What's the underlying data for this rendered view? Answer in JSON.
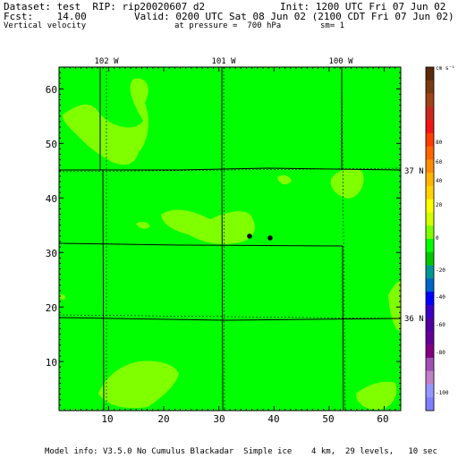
{
  "header": {
    "dataset_label": "Dataset: test  RIP: rip20020607 d2",
    "init_label": "Init: 1200 UTC Fri 07 Jun 02",
    "fcst_label": "Fcst:    14.00",
    "valid_label": "Valid: 0200 UTC Sat 08 Jun 02 (2100 CDT Fri 07 Jun 02)",
    "field_label": "Vertical velocity",
    "pressure_label": "at pressure =  700 hPa",
    "smoothing_label": "sm= 1"
  },
  "map": {
    "fill_color": "#00ff00",
    "light_fill_color": "#7fff00",
    "longitude_labels": [
      "102 W",
      "101 W",
      "100 W"
    ],
    "latitude_labels": [
      "37 N",
      "36 N"
    ],
    "x_ticks": [
      "10",
      "20",
      "30",
      "40",
      "50",
      "60"
    ],
    "y_ticks": [
      "10",
      "20",
      "30",
      "40",
      "50",
      "60"
    ]
  },
  "colorbar": {
    "units": "cm s⁻¹",
    "labels": [
      "80",
      "60",
      "40",
      "20",
      "0",
      "-20",
      "-40",
      "-60",
      "-80",
      "-100"
    ],
    "colors": [
      "#5a2a0a",
      "#7a3a10",
      "#a0421a",
      "#c8281e",
      "#f01414",
      "#ff3c00",
      "#ff6400",
      "#ff8c00",
      "#ffb400",
      "#ffd200",
      "#ffff00",
      "#d2ff00",
      "#7fff00",
      "#00ff00",
      "#00c800",
      "#009696",
      "#0064c8",
      "#0000ff",
      "#3c00c8",
      "#5000a0",
      "#640096",
      "#800080",
      "#a050b4",
      "#c080c8",
      "#9696ff",
      "#8080ff"
    ]
  },
  "footer": {
    "model_info": "Model info: V3.5.0 No Cumulus Blackadar  Simple ice    4 km,  29 levels,   10 sec"
  }
}
